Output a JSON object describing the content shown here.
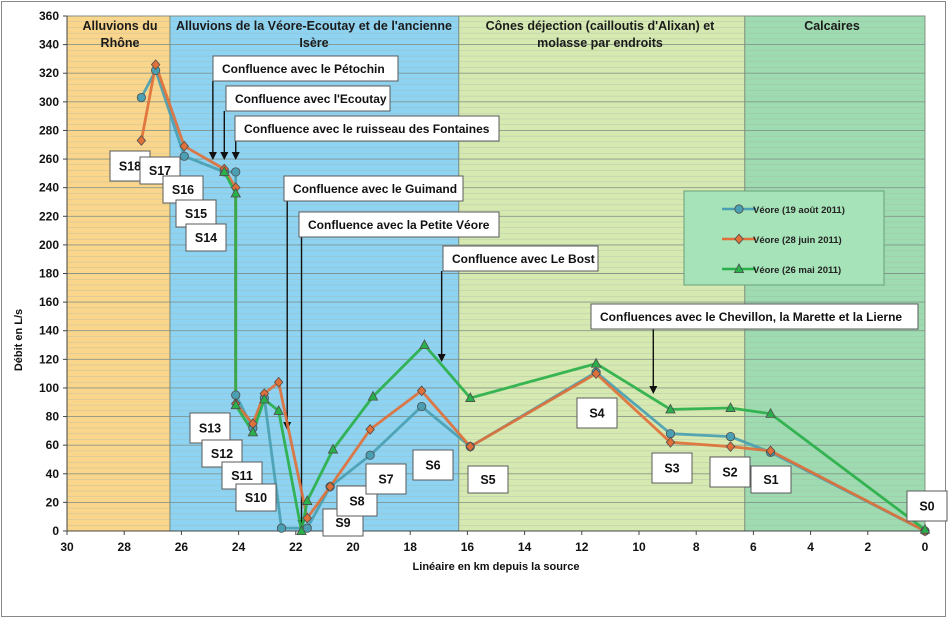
{
  "chart_data": {
    "type": "line",
    "xlabel": "Linéaire en km depuis la source",
    "ylabel": "Débit en L/s",
    "xlim": [
      30,
      0
    ],
    "ylim": [
      0,
      360
    ],
    "x_ticks": [
      30,
      28,
      26,
      24,
      22,
      20,
      18,
      16,
      14,
      12,
      10,
      8,
      6,
      4,
      2,
      0
    ],
    "y_ticks": [
      0,
      20,
      40,
      60,
      80,
      100,
      120,
      140,
      160,
      180,
      200,
      220,
      240,
      260,
      280,
      300,
      320,
      340,
      360
    ],
    "grid": "horizontal minor (every 4 L/s) and major (every 20 L/s)",
    "legend_position": "right",
    "zones": [
      {
        "label_lines": [
          "Alluvions du",
          "Rhône"
        ],
        "from": 30,
        "to": 26.4,
        "color": "#fad68c"
      },
      {
        "label_lines": [
          "Alluvions de la Véore-Ecoutay et de l'ancienne",
          "Isère"
        ],
        "from": 26.4,
        "to": 16.3,
        "color": "#8ed3f1"
      },
      {
        "label_lines": [
          "Cônes déjection (cailloutis d'Alixan) et",
          "molasse par endroits"
        ],
        "from": 16.3,
        "to": 6.3,
        "color": "#d6e9b1"
      },
      {
        "label_lines": [
          "Calcaires"
        ],
        "from": 6.3,
        "to": 0,
        "color": "#9fdbb0"
      }
    ],
    "series": [
      {
        "name": "Véore (19 août 2011)",
        "color": "#4a9fb2",
        "marker": "circle",
        "points": [
          [
            27.4,
            303
          ],
          [
            26.9,
            322
          ],
          [
            25.9,
            262
          ],
          [
            24.5,
            251
          ],
          [
            24.1,
            251
          ],
          [
            24.1,
            95
          ],
          [
            23.5,
            72
          ],
          [
            23.1,
            93
          ],
          [
            22.5,
            2
          ],
          [
            21.6,
            2
          ],
          [
            20.8,
            31
          ],
          [
            19.4,
            53
          ],
          [
            17.6,
            87
          ],
          [
            15.9,
            59
          ],
          [
            11.5,
            111
          ],
          [
            8.9,
            68
          ],
          [
            6.8,
            66
          ],
          [
            5.4,
            55
          ],
          [
            0,
            0
          ]
        ]
      },
      {
        "name": "Véore (28 juin 2011)",
        "color": "#e0703a",
        "marker": "diamond",
        "points": [
          [
            27.4,
            273
          ],
          [
            26.9,
            326
          ],
          [
            25.9,
            269
          ],
          [
            24.5,
            253
          ],
          [
            24.1,
            240
          ],
          [
            24.1,
            89
          ],
          [
            23.5,
            75
          ],
          [
            23.1,
            96
          ],
          [
            22.6,
            104
          ],
          [
            21.6,
            9
          ],
          [
            20.8,
            31
          ],
          [
            19.4,
            71
          ],
          [
            17.6,
            98
          ],
          [
            15.9,
            59
          ],
          [
            11.5,
            110
          ],
          [
            8.9,
            62
          ],
          [
            6.8,
            59
          ],
          [
            5.4,
            56
          ],
          [
            0,
            0
          ]
        ]
      },
      {
        "name": "Véore (26 mai 2011)",
        "color": "#2ab04a",
        "marker": "triangle",
        "points": [
          [
            24.5,
            251
          ],
          [
            24.1,
            236
          ],
          [
            24.1,
            88
          ],
          [
            23.5,
            69
          ],
          [
            23.1,
            92
          ],
          [
            22.6,
            84
          ],
          [
            21.8,
            0
          ],
          [
            21.6,
            21
          ],
          [
            20.7,
            57
          ],
          [
            19.3,
            94
          ],
          [
            17.5,
            130
          ],
          [
            15.9,
            93
          ],
          [
            11.5,
            117
          ],
          [
            8.9,
            85
          ],
          [
            6.8,
            86
          ],
          [
            5.4,
            82
          ],
          [
            0,
            1
          ]
        ]
      }
    ],
    "station_labels": [
      "S18",
      "S17",
      "S16",
      "S15",
      "S14",
      "S13",
      "S12",
      "S11",
      "S10",
      "S9",
      "S8",
      "S7",
      "S6",
      "S5",
      "S4",
      "S3",
      "S2",
      "S1",
      "S0"
    ],
    "annotations": [
      {
        "text": "Confluence avec le Pétochin",
        "x": 24.9
      },
      {
        "text": "Confluence avec l'Ecoutay",
        "x": 24.5
      },
      {
        "text": "Confluence avec le ruisseau des Fontaines",
        "x": 24.1
      },
      {
        "text": "Confluence avec le Guimand",
        "x": 22.3
      },
      {
        "text": "Confluence avec la Petite Véore",
        "x": 21.8
      },
      {
        "text": "Confluence avec Le Bost",
        "x": 16.9
      },
      {
        "text": "Confluences avec le Chevillon, la Marette et la Lierne",
        "x": 9.5
      }
    ]
  }
}
